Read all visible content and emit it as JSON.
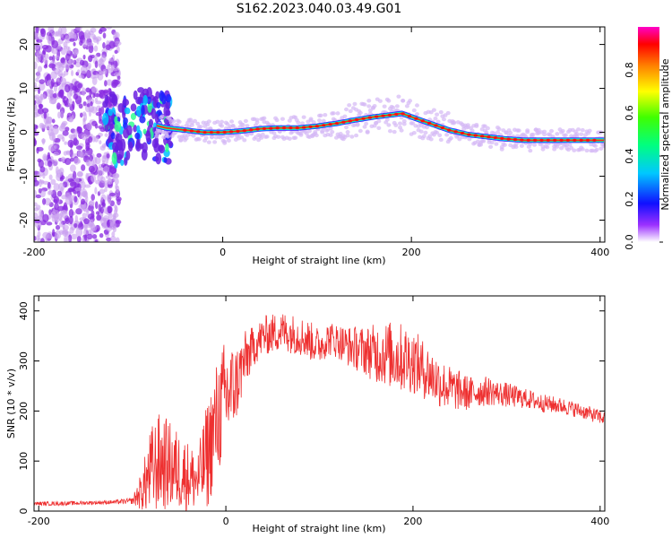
{
  "title": "S162.2023.040.03.49.G01",
  "chart_data": [
    {
      "type": "heatmap",
      "xlabel": "Height of straight line (km)",
      "ylabel": "Frequency (Hz)",
      "xlim": [
        -200,
        405
      ],
      "ylim": [
        -25,
        24
      ],
      "xticks": [
        -200,
        0,
        200,
        400
      ],
      "yticks": [
        -20,
        -10,
        0,
        10,
        20
      ],
      "colorbar": {
        "label": "Normalized spectral amplitude",
        "range": [
          0,
          1
        ],
        "ticks": [
          "0.0",
          "0.2",
          "0.4",
          "0.6",
          "0.8"
        ]
      },
      "ridge": {
        "x": [
          -100,
          -80,
          -60,
          -40,
          -20,
          0,
          20,
          40,
          60,
          80,
          100,
          120,
          140,
          160,
          180,
          190,
          200,
          220,
          240,
          260,
          280,
          300,
          320,
          340,
          360,
          380,
          400
        ],
        "y": [
          1,
          2,
          1,
          0.5,
          0,
          0,
          0.3,
          0.8,
          1,
          1,
          1.4,
          2,
          2.8,
          3.5,
          4,
          4.3,
          3.5,
          2,
          0.5,
          -0.5,
          -1,
          -1.5,
          -1.8,
          -1.8,
          -1.8,
          -1.8,
          -1.8
        ]
      },
      "noise_region_x": [
        -200,
        -120
      ]
    },
    {
      "type": "line",
      "xlabel": "Height of straight line (km)",
      "ylabel": "SNR (10 * v/v)",
      "xlim": [
        -205,
        405
      ],
      "ylim": [
        0,
        430
      ],
      "xticks": [
        -200,
        0,
        200,
        400
      ],
      "yticks": [
        0,
        100,
        200,
        300,
        400
      ],
      "series": [
        {
          "color": "#ee3030",
          "x": [
            -205,
            -180,
            -160,
            -140,
            -120,
            -100,
            -90,
            -80,
            -70,
            -60,
            -50,
            -40,
            -30,
            -20,
            -10,
            0,
            10,
            20,
            30,
            40,
            50,
            60,
            70,
            80,
            90,
            100,
            110,
            120,
            130,
            140,
            150,
            160,
            170,
            180,
            190,
            200,
            210,
            220,
            230,
            240,
            250,
            260,
            270,
            280,
            290,
            300,
            320,
            340,
            360,
            380,
            405
          ],
          "y": [
            15,
            15,
            16,
            17,
            18,
            20,
            40,
            80,
            100,
            90,
            80,
            70,
            60,
            110,
            180,
            230,
            250,
            300,
            330,
            350,
            355,
            360,
            355,
            350,
            340,
            330,
            345,
            340,
            330,
            325,
            320,
            315,
            315,
            310,
            305,
            300,
            285,
            270,
            255,
            245,
            240,
            235,
            238,
            240,
            236,
            232,
            225,
            215,
            210,
            200,
            185
          ],
          "noise": [
            4,
            4,
            4,
            4,
            4,
            6,
            40,
            90,
            100,
            90,
            80,
            70,
            60,
            110,
            120,
            120,
            80,
            60,
            40,
            40,
            40,
            40,
            40,
            40,
            40,
            35,
            35,
            35,
            40,
            45,
            50,
            60,
            65,
            70,
            70,
            65,
            60,
            55,
            50,
            45,
            40,
            35,
            30,
            30,
            25,
            25,
            20,
            18,
            16,
            15,
            14
          ]
        }
      ]
    }
  ]
}
